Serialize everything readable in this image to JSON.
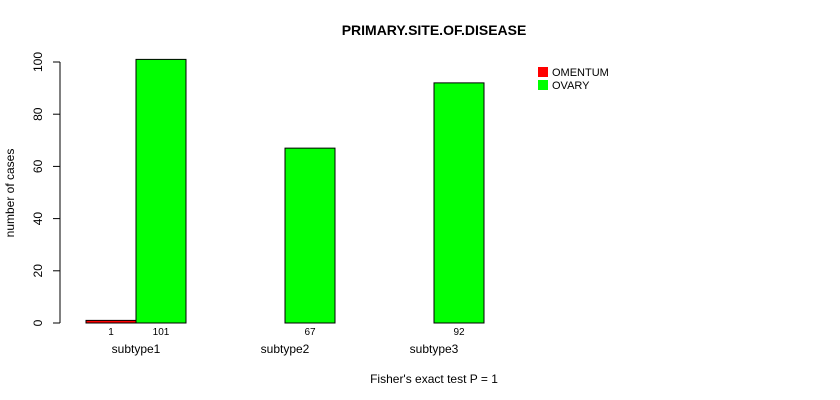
{
  "chart_data": {
    "type": "bar",
    "title": "PRIMARY.SITE.OF.DISEASE",
    "ylabel": "number of cases",
    "xlabel": "Fisher's exact test P = 1",
    "ylim": [
      0,
      100
    ],
    "yticks": [
      0,
      20,
      40,
      60,
      80,
      100
    ],
    "categories": [
      "subtype1",
      "subtype2",
      "subtype3"
    ],
    "series": [
      {
        "name": "OMENTUM",
        "color": "#ff0000",
        "values": [
          1,
          0,
          0
        ],
        "labels": [
          "1",
          "",
          ""
        ]
      },
      {
        "name": "OVARY",
        "color": "#00ff00",
        "values": [
          101,
          67,
          92
        ],
        "labels": [
          "101",
          "67",
          "92"
        ]
      }
    ],
    "legend_position": "top-right",
    "grid": false
  }
}
